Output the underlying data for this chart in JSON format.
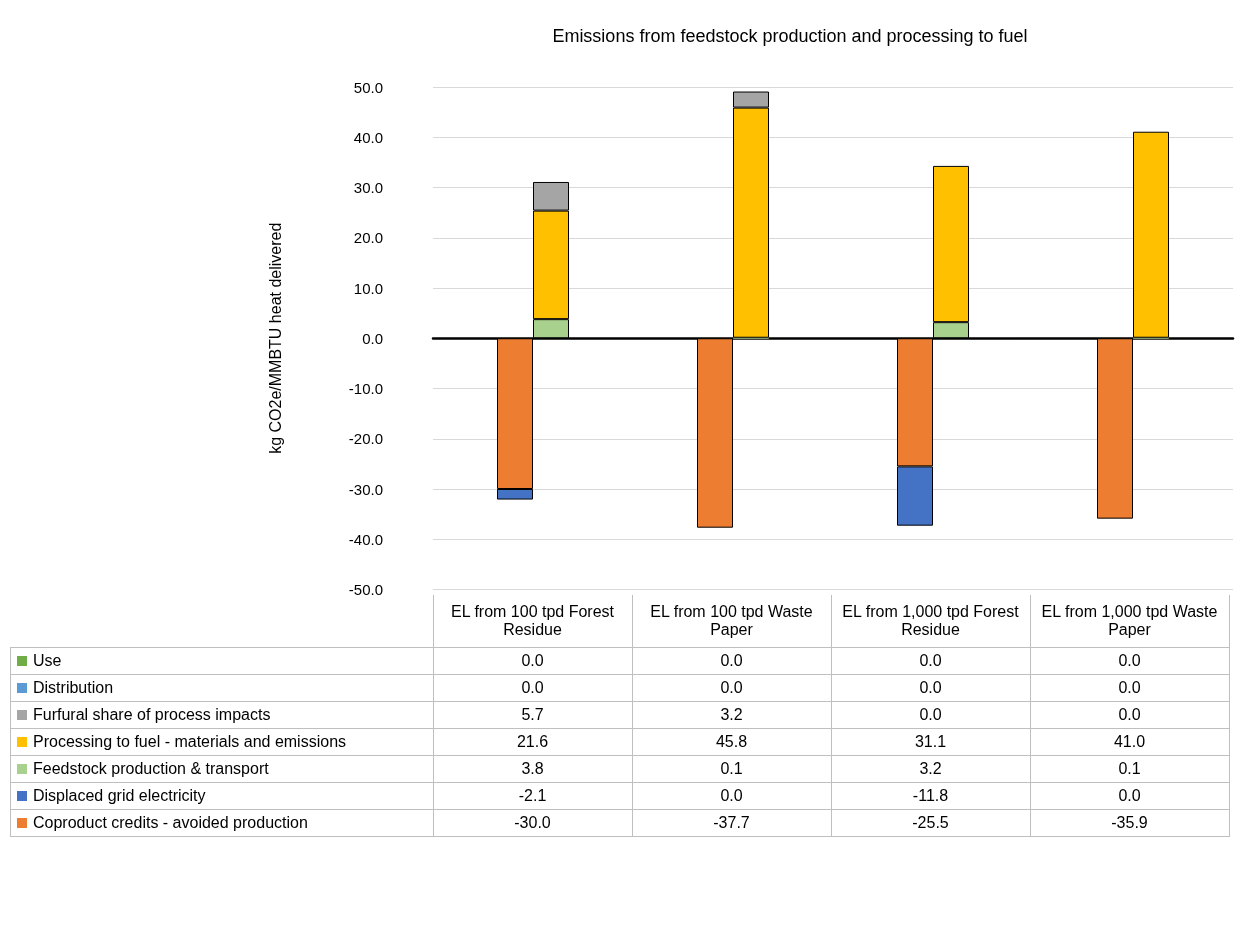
{
  "chart_data": {
    "type": "bar",
    "title": "Emissions from feedstock production and processing to fuel",
    "ylabel": "kg CO2e/MMBTU heat delivered",
    "categories": [
      "EL from 100 tpd Forest Residue",
      "EL from 100 tpd Waste Paper",
      "EL from 1,000 tpd Forest Residue",
      "EL from 1,000 tpd Waste Paper"
    ],
    "stacked": true,
    "series": [
      {
        "name": "Coproduct credits - avoided production",
        "color": "#ed7d31",
        "values": [
          -30.0,
          -37.7,
          -25.5,
          -35.9
        ],
        "value_labels": [
          "-30.0",
          "-37.7",
          "-25.5",
          "-35.9"
        ]
      },
      {
        "name": "Displaced grid electricity",
        "color": "#4472c4",
        "values": [
          -2.1,
          0.0,
          -11.8,
          0.0
        ],
        "value_labels": [
          "-2.1",
          "0.0",
          "-11.8",
          "0.0"
        ]
      },
      {
        "name": "Feedstock production & transport",
        "color": "#a9d18e",
        "values": [
          3.8,
          0.1,
          3.2,
          0.1
        ],
        "value_labels": [
          "3.8",
          "0.1",
          "3.2",
          "0.1"
        ]
      },
      {
        "name": "Processing to fuel - materials and emissions",
        "color": "#ffc000",
        "values": [
          21.6,
          45.8,
          31.1,
          41.0
        ],
        "value_labels": [
          "21.6",
          "45.8",
          "31.1",
          "41.0"
        ]
      },
      {
        "name": "Furfural share of process impacts",
        "color": "#a5a5a5",
        "values": [
          5.7,
          3.2,
          0.0,
          0.0
        ],
        "value_labels": [
          "5.7",
          "3.2",
          "0.0",
          "0.0"
        ]
      },
      {
        "name": "Distribution",
        "color": "#5b9bd5",
        "values": [
          0.0,
          0.0,
          0.0,
          0.0
        ],
        "value_labels": [
          "0.0",
          "0.0",
          "0.0",
          "0.0"
        ]
      },
      {
        "name": "Use",
        "color": "#70ad47",
        "values": [
          0.0,
          0.0,
          0.0,
          0.0
        ],
        "value_labels": [
          "0.0",
          "0.0",
          "0.0",
          "0.0"
        ]
      }
    ],
    "ylim": [
      -50,
      50
    ],
    "yticks": [
      {
        "value": -50,
        "label": "-50.0"
      },
      {
        "value": -40,
        "label": "-40.0"
      },
      {
        "value": -30,
        "label": "-30.0"
      },
      {
        "value": -20,
        "label": "-20.0"
      },
      {
        "value": -10,
        "label": "-10.0"
      },
      {
        "value": 0,
        "label": "0.0"
      },
      {
        "value": 10,
        "label": "10.0"
      },
      {
        "value": 20,
        "label": "20.0"
      },
      {
        "value": 30,
        "label": "30.0"
      },
      {
        "value": 40,
        "label": "40.0"
      },
      {
        "value": 50,
        "label": "50.0"
      }
    ],
    "grid": "y",
    "legend": "bottom"
  }
}
